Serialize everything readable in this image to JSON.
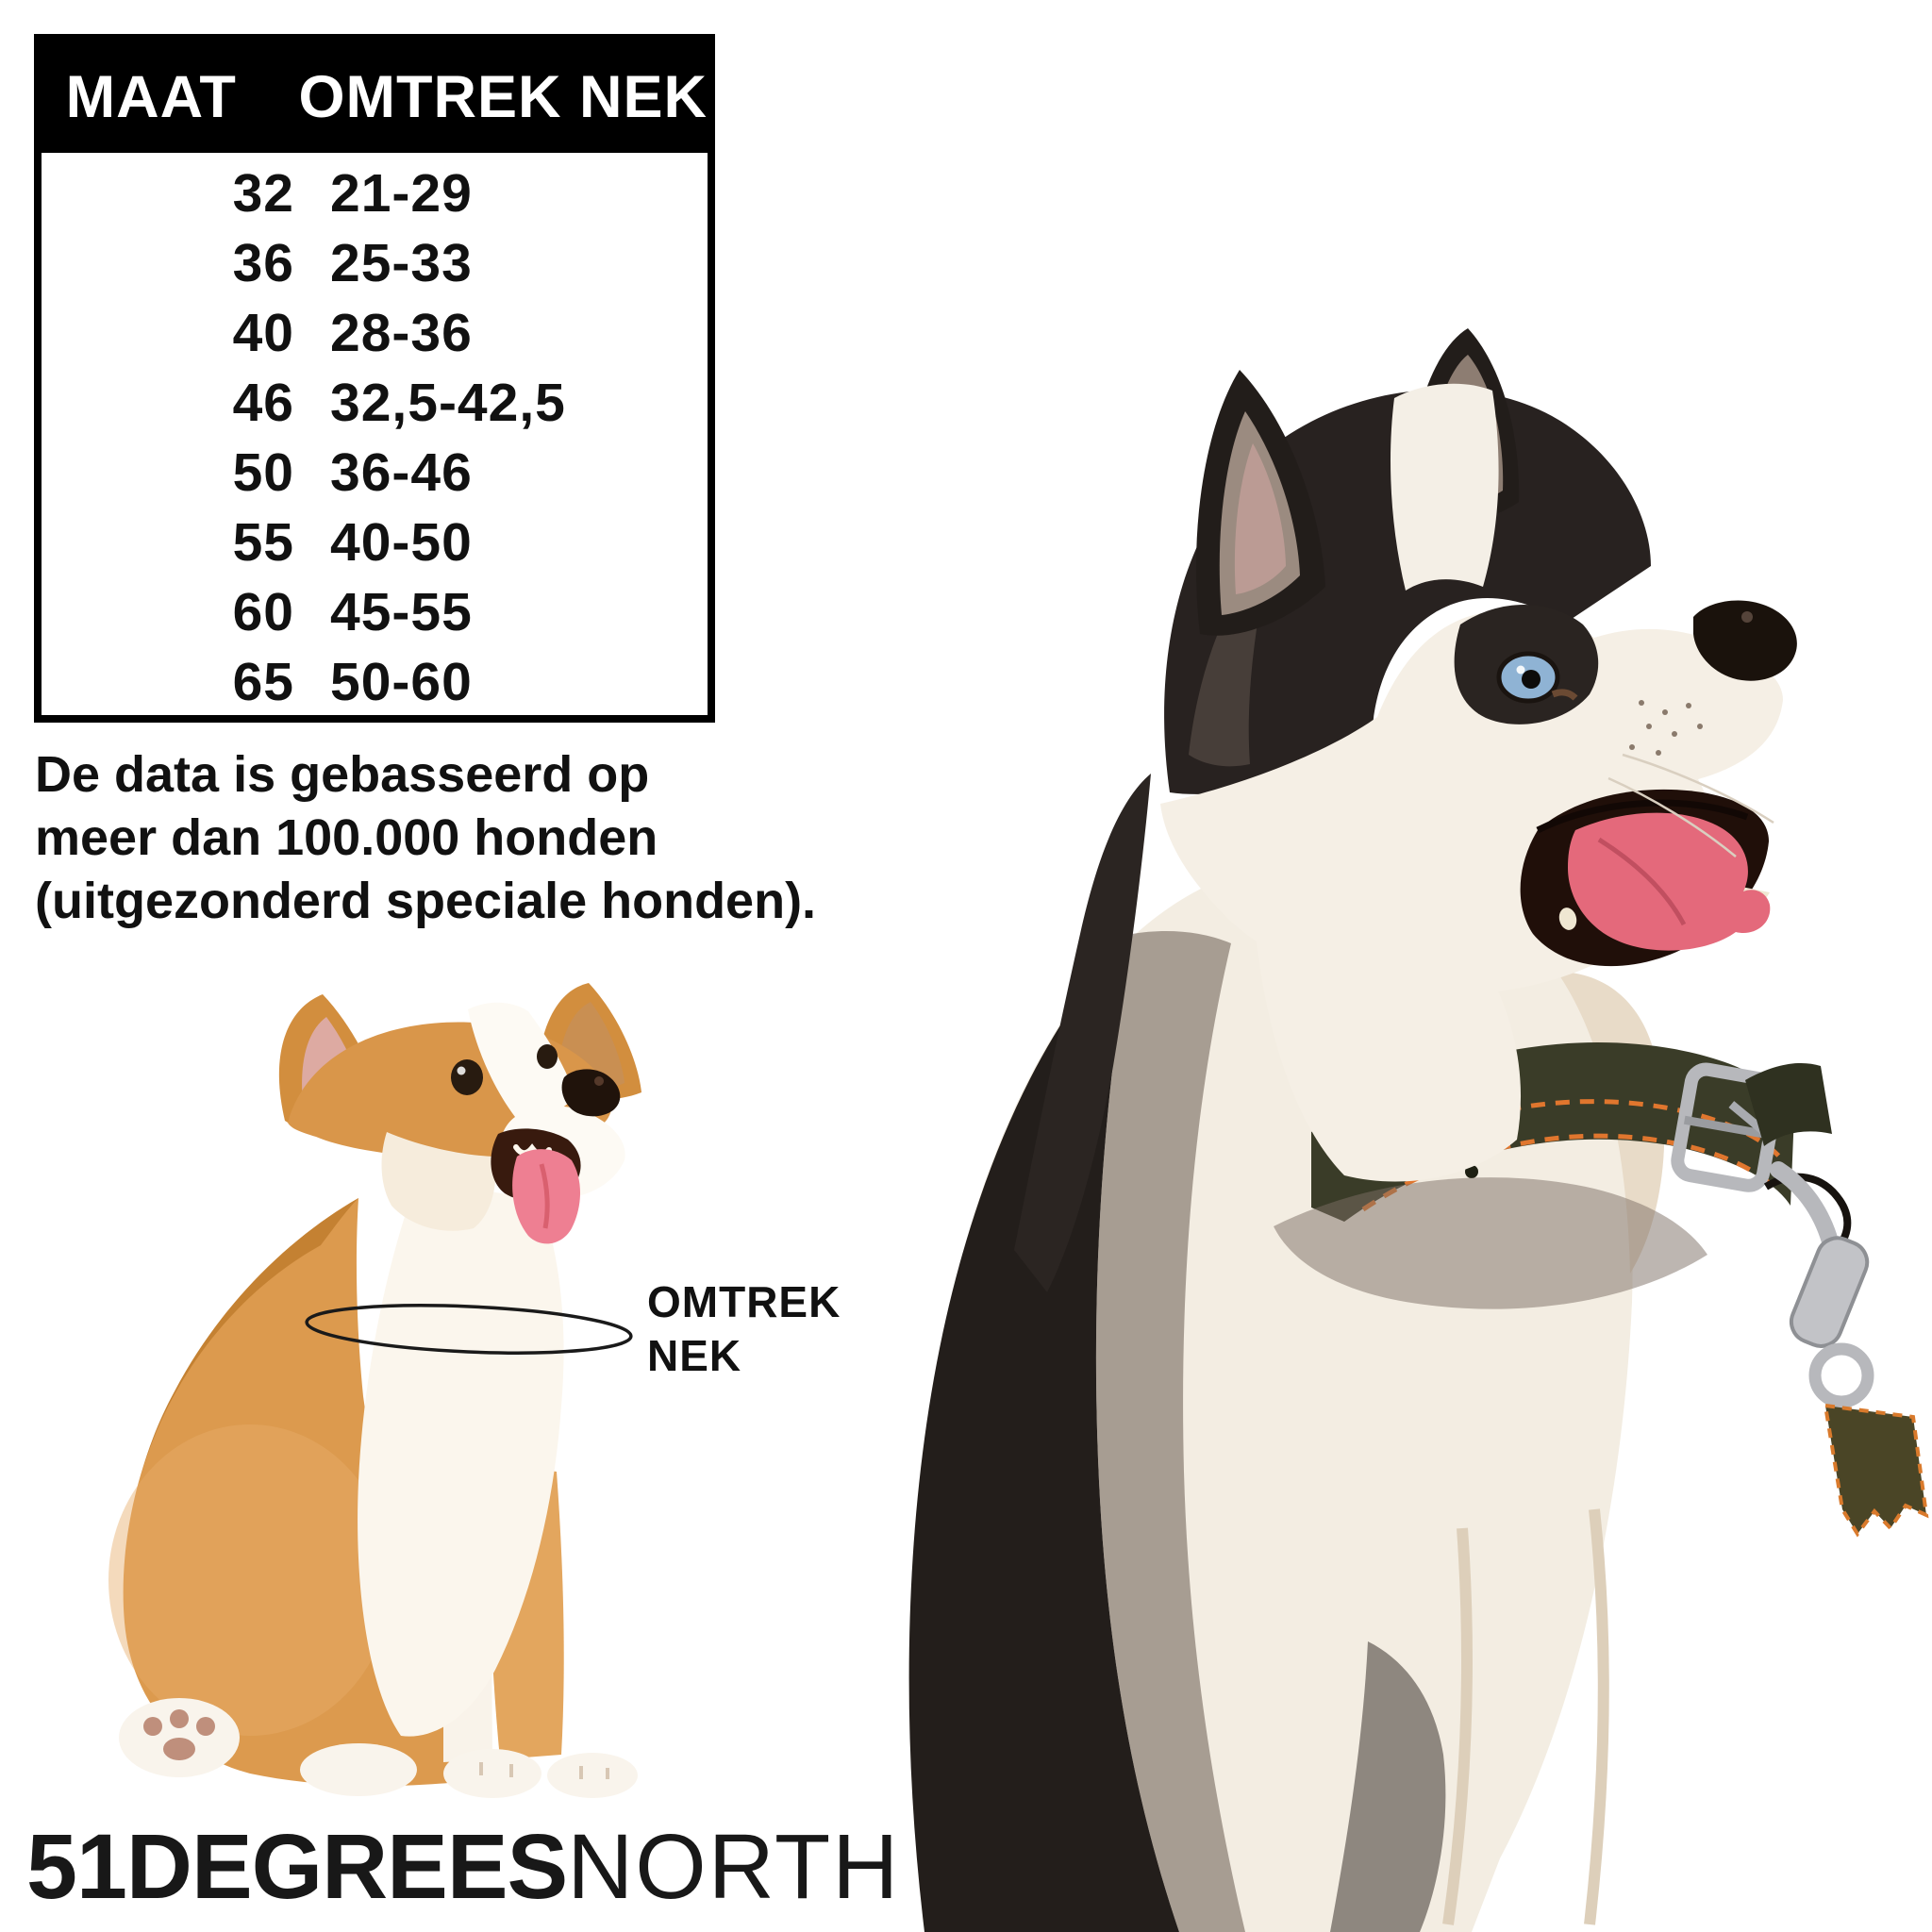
{
  "table": {
    "headers": [
      "MAAT",
      "OMTREK NEK"
    ],
    "rows": [
      {
        "size": "32",
        "neck": "21-29"
      },
      {
        "size": "36",
        "neck": "25-33"
      },
      {
        "size": "40",
        "neck": "28-36"
      },
      {
        "size": "46",
        "neck": "32,5-42,5"
      },
      {
        "size": "50",
        "neck": "36-46"
      },
      {
        "size": "55",
        "neck": "40-50"
      },
      {
        "size": "60",
        "neck": "45-55"
      },
      {
        "size": "65",
        "neck": "50-60"
      }
    ]
  },
  "note": {
    "lines": [
      "De data is gebasseerd op",
      "meer dan 100.000 honden",
      "(uitgezonderd speciale honden)."
    ]
  },
  "neck_label": {
    "line1": "OMTREK",
    "line2": "NEK"
  },
  "logo": {
    "bold": "51DEGREES",
    "light": "NORTH"
  },
  "images": {
    "corgi_alt": "corgi-puppy-photo",
    "husky_alt": "husky-dog-photo"
  },
  "colors": {
    "table_header_bg": "#000000",
    "table_header_text": "#ffffff",
    "body_text": "#111111",
    "corgi_tan": "#dc9a4e",
    "husky_dark": "#231e1b",
    "husky_eye_blue": "#8fb3d4",
    "collar_leather": "#3a3c28",
    "collar_stitch": "#e0762e",
    "tongue_pink": "#e4697b"
  }
}
